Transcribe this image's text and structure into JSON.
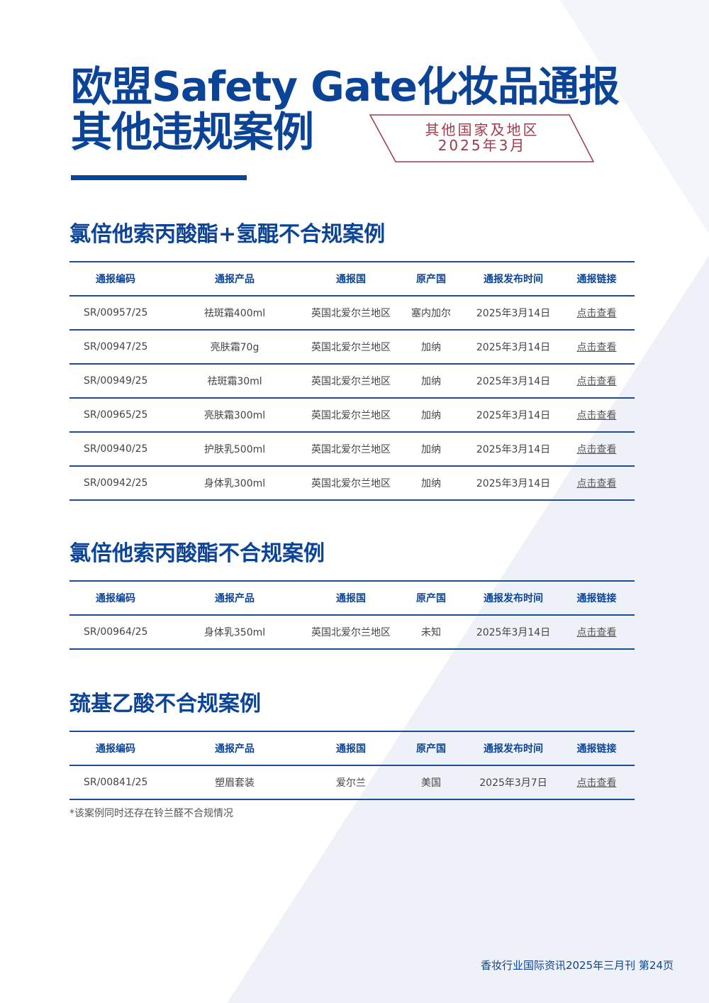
{
  "title": {
    "line1": "欧盟Safety Gate化妆品通报",
    "line2": "其他违规案例"
  },
  "badge": {
    "line1": "其他国家及地区",
    "line2": "2025年3月"
  },
  "columns": [
    "通报编码",
    "通报产品",
    "通报国",
    "原产国",
    "通报发布时间",
    "通报链接"
  ],
  "sections": [
    {
      "heading": "氯倍他索丙酸酯+氢醌不合规案例",
      "rows": [
        [
          "SR/00957/25",
          "祛斑霜400ml",
          "英国北爱尔兰地区",
          "塞内加尔",
          "2025年3月14日",
          "点击查看"
        ],
        [
          "SR/00947/25",
          "亮肤霜70g",
          "英国北爱尔兰地区",
          "加纳",
          "2025年3月14日",
          "点击查看"
        ],
        [
          "SR/00949/25",
          "祛斑霜30ml",
          "英国北爱尔兰地区",
          "加纳",
          "2025年3月14日",
          "点击查看"
        ],
        [
          "SR/00965/25",
          "亮肤霜300ml",
          "英国北爱尔兰地区",
          "加纳",
          "2025年3月14日",
          "点击查看"
        ],
        [
          "SR/00940/25",
          "护肤乳500ml",
          "英国北爱尔兰地区",
          "加纳",
          "2025年3月14日",
          "点击查看"
        ],
        [
          "SR/00942/25",
          "身体乳300ml",
          "英国北爱尔兰地区",
          "加纳",
          "2025年3月14日",
          "点击查看"
        ]
      ]
    },
    {
      "heading": "氯倍他索丙酸酯不合规案例",
      "rows": [
        [
          "SR/00964/25",
          "身体乳350ml",
          "英国北爱尔兰地区",
          "未知",
          "2025年3月14日",
          "点击查看"
        ]
      ]
    },
    {
      "heading": "巯基乙酸不合规案例",
      "rows": [
        [
          "SR/00841/25",
          "塑眉套装",
          "爱尔兰",
          "美国",
          "2025年3月7日",
          "点击查看"
        ]
      ]
    }
  ],
  "note": "*该案例同时还存在铃兰醛不合规情况",
  "footer": "香妆行业国际资讯2025年三月刊 第24页",
  "colors": {
    "primary": "#0b4497",
    "badge": "#a03a4b",
    "background_shape": "#eef2f8"
  }
}
